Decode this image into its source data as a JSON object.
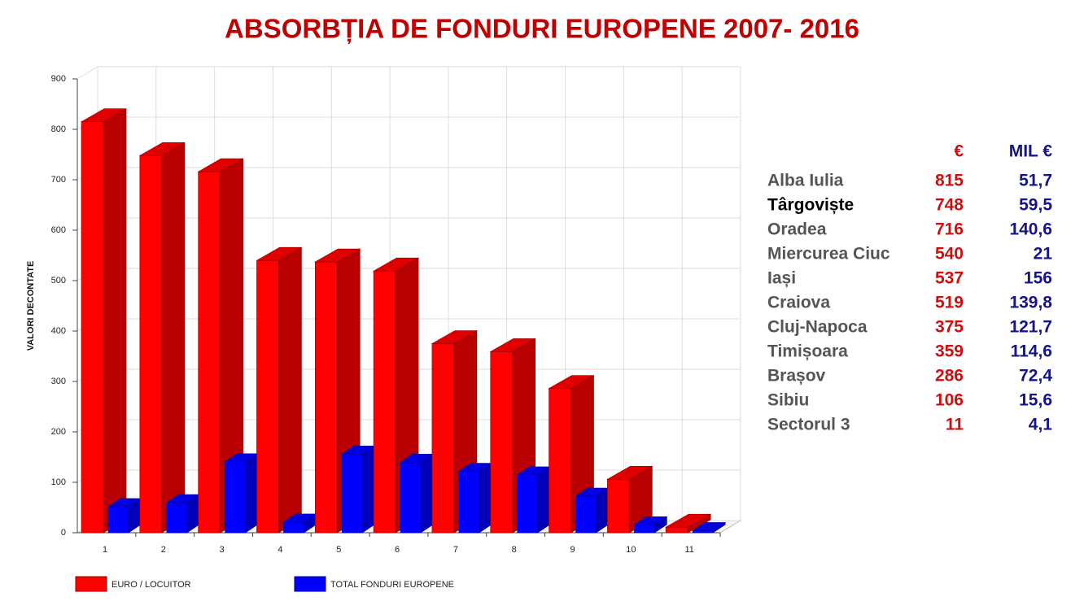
{
  "chart_data": {
    "type": "bar3d",
    "title": "ABSORBȚIA DE FONDURI EUROPENE 2007- 2016",
    "y_label": "VALORI DECONTATE",
    "categories": [
      "1",
      "2",
      "3",
      "4",
      "5",
      "6",
      "7",
      "8",
      "9",
      "10",
      "11"
    ],
    "series": [
      {
        "name": "EURO / LOCUITOR",
        "color": "#ff0000",
        "values": [
          815,
          748,
          716,
          540,
          537,
          519,
          375,
          359,
          286,
          106,
          11
        ]
      },
      {
        "name": "TOTAL FONDURI EUROPENE",
        "color": "#0000ff",
        "values": [
          51.7,
          59.5,
          140.6,
          21,
          156,
          139.8,
          121.7,
          114.6,
          72.4,
          15.6,
          4.1
        ]
      }
    ],
    "ylim": [
      0,
      900
    ],
    "yticks": [
      0,
      100,
      200,
      300,
      400,
      500,
      600,
      700,
      800,
      900
    ],
    "grid": true,
    "legend": "bottom-left"
  },
  "table": {
    "columns": [
      "€",
      "MIL €"
    ],
    "rows": [
      [
        "Alba Iulia",
        "815",
        "51,7"
      ],
      [
        "Târgoviște",
        "748",
        "59,5"
      ],
      [
        "Oradea",
        "716",
        "140,6"
      ],
      [
        "Miercurea Ciuc",
        "540",
        "21"
      ],
      [
        "Iași",
        "537",
        "156"
      ],
      [
        "Craiova",
        "519",
        "139,8"
      ],
      [
        "Cluj-Napoca",
        "375",
        "121,7"
      ],
      [
        "Timișoara",
        "359",
        "114,6"
      ],
      [
        "Brașov",
        "286",
        "72,4"
      ],
      [
        "Sibiu",
        "106",
        "15,6"
      ],
      [
        "Sectorul 3",
        "11",
        "4,1"
      ]
    ],
    "highlighted_row": 1
  }
}
